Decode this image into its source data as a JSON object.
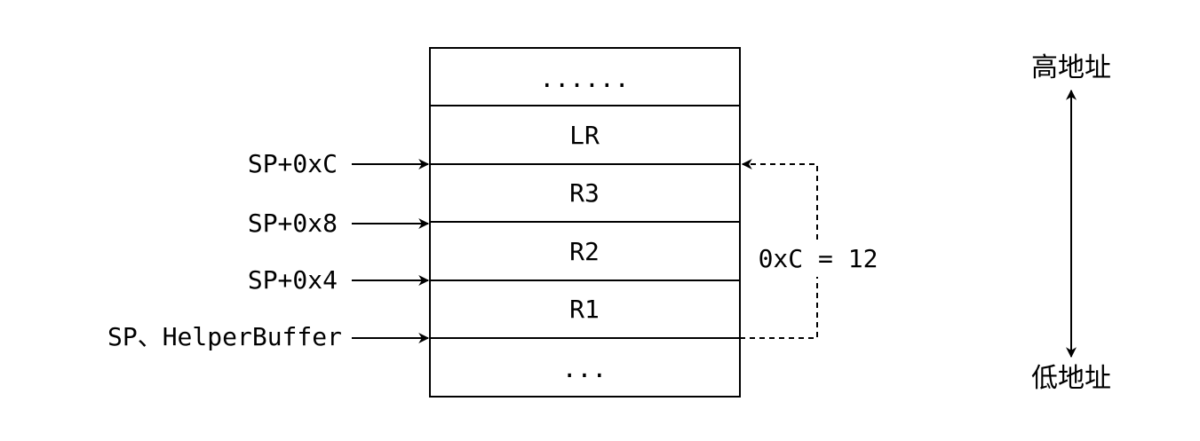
{
  "stack": {
    "cells": [
      {
        "label": "......"
      },
      {
        "label": "LR"
      },
      {
        "label": "R3"
      },
      {
        "label": "R2"
      },
      {
        "label": "R1"
      },
      {
        "label": "..."
      }
    ]
  },
  "pointers": [
    {
      "label": "SP+0xC"
    },
    {
      "label": "SP+0x8"
    },
    {
      "label": "SP+0x4"
    },
    {
      "label": "SP、HelperBuffer"
    }
  ],
  "offset_label": "0xC = 12",
  "address_axis": {
    "high_label": "高地址",
    "low_label": "低地址"
  },
  "colors": {
    "stroke": "#000000",
    "background": "#ffffff"
  }
}
